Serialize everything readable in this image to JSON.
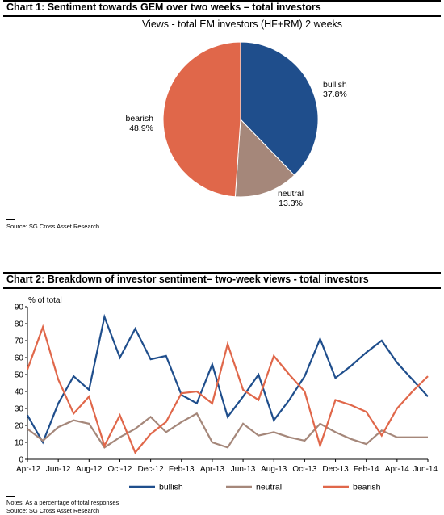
{
  "chart1": {
    "heading": "Chart 1: Sentiment towards GEM over two weeks – total investors",
    "source": "Source: SG Cross Asset Research"
  },
  "chart2": {
    "heading": "Chart 2: Breakdown of investor sentiment– two-week views - total investors",
    "notes": "Notes: As a percentage of total responses",
    "source": "Source: SG Cross Asset Research"
  },
  "chart_data": [
    {
      "type": "pie",
      "title": "Views - total EM investors (HF+RM) 2 weeks",
      "categories": [
        "bullish",
        "neutral",
        "bearish"
      ],
      "values": [
        37.8,
        13.3,
        48.9
      ],
      "labels": [
        "37.8%",
        "13.3%",
        "48.9%"
      ],
      "colors": [
        "#1f4e8c",
        "#a5877a",
        "#e0674a"
      ],
      "start_angle_deg": 0
    },
    {
      "type": "line",
      "ylabel": "% of total",
      "ylim": [
        0,
        90
      ],
      "yticks": [
        0,
        10,
        20,
        30,
        40,
        50,
        60,
        70,
        80,
        90
      ],
      "xtick_labels": [
        "Apr-12",
        "Jun-12",
        "Aug-12",
        "Oct-12",
        "Dec-12",
        "Feb-13",
        "Apr-13",
        "Jun-13",
        "Aug-13",
        "Oct-13",
        "Dec-13",
        "Feb-14",
        "Apr-14",
        "Jun-14"
      ],
      "grid": false,
      "legend": "bottom",
      "series": [
        {
          "name": "bullish",
          "color": "#1f4e8c",
          "values": [
            26,
            10,
            33,
            49,
            41,
            84,
            60,
            77,
            59,
            61,
            38,
            33,
            56,
            25,
            37,
            50,
            23,
            35,
            49,
            71,
            48,
            55,
            63,
            70,
            57,
            47,
            37
          ]
        },
        {
          "name": "neutral",
          "color": "#a5877a",
          "values": [
            18,
            11,
            19,
            23,
            21,
            7,
            13,
            18,
            25,
            16,
            22,
            27,
            10,
            7,
            21,
            14,
            16,
            13,
            11,
            21,
            16,
            12,
            9,
            17,
            13,
            13,
            13
          ]
        },
        {
          "name": "bearish",
          "color": "#e0674a",
          "values": [
            53,
            78,
            47,
            27,
            37,
            8,
            26,
            4,
            15,
            22,
            39,
            40,
            33,
            68,
            41,
            35,
            61,
            50,
            40,
            8,
            35,
            32,
            28,
            14,
            30,
            40,
            49
          ]
        }
      ]
    }
  ]
}
